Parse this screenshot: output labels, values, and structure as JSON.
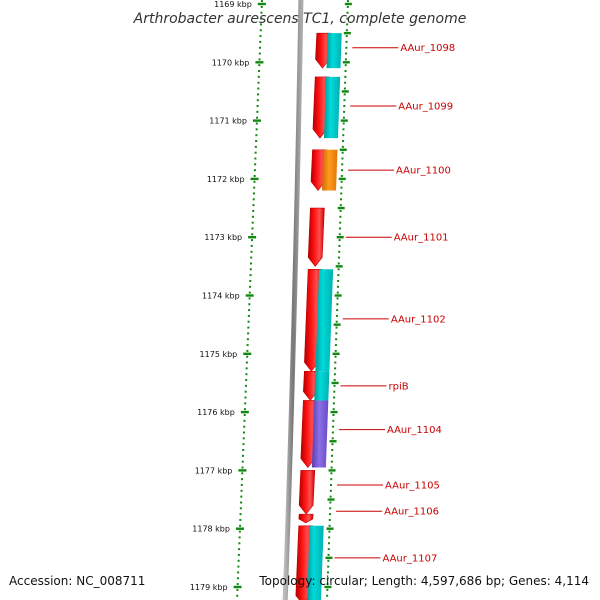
{
  "title": "Arthrobacter aurescens TC1, complete genome",
  "footer": {
    "accession": "Accession: NC_008711",
    "topology": "Topology: circular; Length: 4,597,686 bp; Genes: 4,114"
  },
  "colors": {
    "forward_gene": "#ff0000",
    "cds_cyan": "#00c8c8",
    "cds_orange": "#ff8800",
    "cds_purple": "#7a5cd6",
    "label": "#cc0000",
    "ticks": "#118811",
    "backbone": "#888888"
  },
  "ruler": {
    "unit": "kbp",
    "first_tick_kbp": 1169,
    "last_tick_kbp": 1179,
    "labels": [
      "1169 kbp",
      "1170 kbp",
      "1171 kbp",
      "1172 kbp",
      "1173 kbp",
      "1174 kbp",
      "1175 kbp",
      "1176 kbp",
      "1177 kbp",
      "1178 kbp",
      "1179 kbp"
    ]
  },
  "genes": [
    {
      "label": "AAur_1098",
      "start_kbp": 1169.5,
      "end_kbp": 1170.1,
      "strand": "+",
      "cds": "cyan"
    },
    {
      "label": "AAur_1099",
      "start_kbp": 1170.25,
      "end_kbp": 1171.3,
      "strand": "+",
      "cds": "cyan"
    },
    {
      "label": "AAur_1100",
      "start_kbp": 1171.5,
      "end_kbp": 1172.2,
      "strand": "+",
      "cds": "orange"
    },
    {
      "label": "AAur_1101",
      "start_kbp": 1172.5,
      "end_kbp": 1173.5,
      "strand": "+",
      "cds": "none"
    },
    {
      "label": "AAur_1102",
      "start_kbp": 1173.55,
      "end_kbp": 1175.3,
      "strand": "+",
      "cds": "cyan"
    },
    {
      "label": "rpiB",
      "start_kbp": 1175.3,
      "end_kbp": 1175.8,
      "strand": "+",
      "cds": "cyan"
    },
    {
      "label": "AAur_1104",
      "start_kbp": 1175.8,
      "end_kbp": 1176.95,
      "strand": "+",
      "cds": "purple"
    },
    {
      "label": "AAur_1105",
      "start_kbp": 1177.0,
      "end_kbp": 1177.75,
      "strand": "+",
      "cds": "none"
    },
    {
      "label": "AAur_1106",
      "start_kbp": 1177.75,
      "end_kbp": 1177.9,
      "strand": "+",
      "cds": "none"
    },
    {
      "label": "AAur_1107",
      "start_kbp": 1177.95,
      "end_kbp": 1179.3,
      "strand": "+",
      "cds": "cyan"
    }
  ],
  "gene_label_positions_kbp": [
    1169.75,
    1170.75,
    1171.85,
    1173.0,
    1174.4,
    1175.55,
    1176.3,
    1177.25,
    1177.7,
    1178.5
  ]
}
